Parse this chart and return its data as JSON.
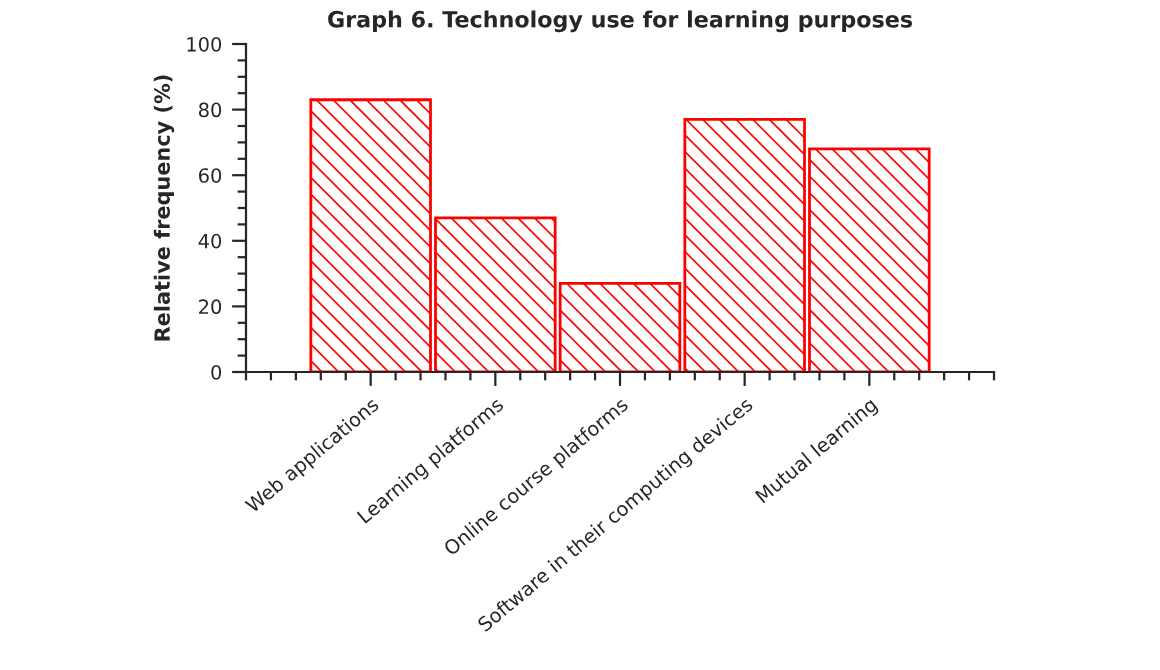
{
  "chart_data": {
    "type": "bar",
    "title": "Graph 6. Technology use for learning purposes",
    "ylabel": "Relative frequency (%)",
    "categories": [
      "Web applications",
      "Learning platforms",
      "Online course platforms",
      "Software in their computing devices",
      "Mutual learning"
    ],
    "values": [
      83,
      47,
      27,
      77,
      68
    ],
    "color": "#ff0000",
    "ylim": [
      0,
      100
    ],
    "yticks": [
      0,
      20,
      40,
      60,
      80,
      100
    ],
    "grid": false,
    "legend": false
  }
}
